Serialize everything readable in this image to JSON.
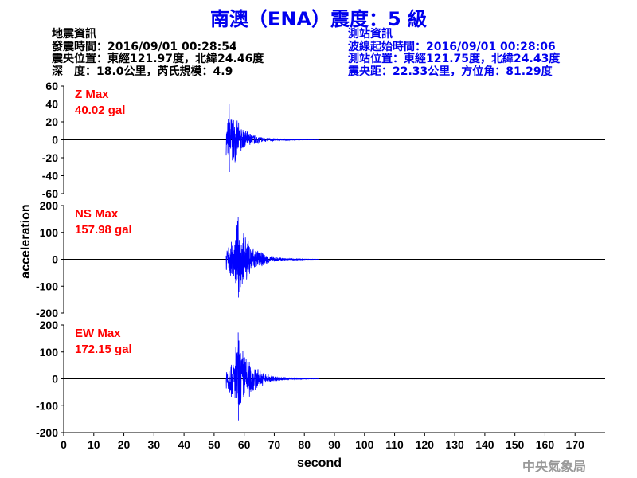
{
  "title": "南澳（ENA）震度：5 級",
  "earthquake_info": {
    "heading": "地震資訊",
    "lines": [
      "發震時間：2016/09/01 00:28:54",
      "震央位置：東經121.97度，北緯24.46度",
      "深　度：18.0公里，芮氏規模：4.9"
    ]
  },
  "station_info": {
    "heading": "測站資訊",
    "lines": [
      "波線起始時間：2016/09/01 00:28:06",
      "測站位置：東經121.75度，北緯24.43度",
      "震央距：22.33公里，方位角：81.29度"
    ]
  },
  "credit": "中央氣象局",
  "colors": {
    "trace": "#0000ff",
    "max_label": "#ff0000",
    "title": "#0000ee",
    "credit": "#999999"
  },
  "chart_data": {
    "type": "line",
    "xlabel": "second",
    "ylabel": "acceleration",
    "xlim": [
      0,
      180
    ],
    "xticks": [
      0,
      10,
      20,
      30,
      40,
      50,
      60,
      70,
      80,
      90,
      100,
      110,
      120,
      130,
      140,
      150,
      160,
      170
    ],
    "panels": [
      {
        "name": "Z",
        "label": "Z Max",
        "max": "40.02 gal",
        "ylim": [
          -60,
          60
        ],
        "yticks": [
          60,
          40,
          20,
          0,
          -20,
          -40,
          -60
        ],
        "onset": 54,
        "peak_time": 55,
        "peak": 40.02,
        "coda_end": 85
      },
      {
        "name": "NS",
        "label": "NS Max",
        "max": "157.98 gal",
        "ylim": [
          -200,
          200
        ],
        "yticks": [
          200,
          100,
          0,
          -100,
          -200
        ],
        "onset": 54,
        "peak_time": 58,
        "peak": 157.98,
        "coda_end": 85
      },
      {
        "name": "EW",
        "label": "EW Max",
        "max": "172.15 gal",
        "ylim": [
          -200,
          200
        ],
        "yticks": [
          200,
          100,
          0,
          -100,
          -200
        ],
        "onset": 54,
        "peak_time": 58,
        "peak": 172.15,
        "coda_end": 85
      }
    ]
  }
}
